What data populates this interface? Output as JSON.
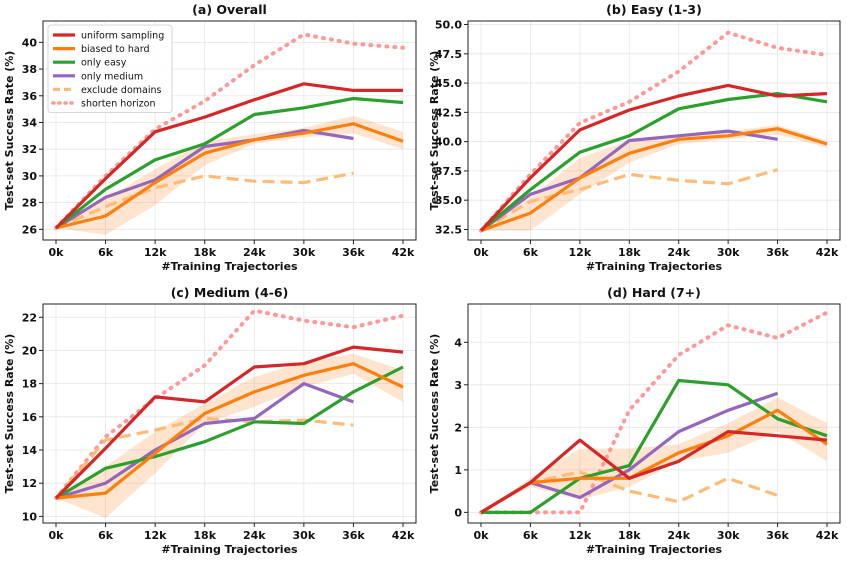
{
  "figure": {
    "legend_panel": "top-left of panel (a)"
  },
  "series_styles": [
    {
      "name": "uniform sampling",
      "color": "#d62728",
      "dash": "solid",
      "opacity": 1.0
    },
    {
      "name": "biased to hard",
      "color": "#ff7f0e",
      "dash": "solid",
      "opacity": 1.0
    },
    {
      "name": "only easy",
      "color": "#2ca02c",
      "dash": "solid",
      "opacity": 1.0
    },
    {
      "name": "only medium",
      "color": "#9467bd",
      "dash": "solid",
      "opacity": 1.0
    },
    {
      "name": "exclude domains",
      "color": "#ffbb78",
      "dash": "dashed",
      "opacity": 1.0
    },
    {
      "name": "shorten horizon",
      "color": "#ff9896",
      "dash": "dotted",
      "opacity": 1.0
    }
  ],
  "chart_data": [
    {
      "type": "line",
      "title": "(a) Overall",
      "xlabel": "#Training Trajectories",
      "ylabel": "Test-set Success Rate (%)",
      "categories": [
        "0k",
        "6k",
        "12k",
        "18k",
        "24k",
        "30k",
        "36k",
        "42k"
      ],
      "ylim": [
        25.2,
        41.6
      ],
      "yticks": [
        26,
        28,
        30,
        32,
        34,
        36,
        38,
        40
      ],
      "ytick_labels": [
        "26",
        "28",
        "30",
        "32",
        "34",
        "36",
        "38",
        "40"
      ],
      "grid": true,
      "legend": "top-left",
      "band": {
        "series": "biased to hard",
        "lower": [
          26.1,
          25.6,
          27.8,
          30.8,
          32.4,
          32.9,
          33.2,
          32.0
        ],
        "upper": [
          26.1,
          28.3,
          30.5,
          32.6,
          33.1,
          33.6,
          34.5,
          33.3
        ]
      },
      "series": [
        {
          "name": "uniform sampling",
          "values": [
            26.1,
            29.8,
            33.3,
            34.4,
            35.7,
            36.9,
            36.4,
            36.4
          ]
        },
        {
          "name": "biased to hard",
          "values": [
            26.1,
            27.0,
            29.5,
            31.7,
            32.7,
            33.2,
            33.9,
            32.6
          ]
        },
        {
          "name": "only easy",
          "values": [
            26.1,
            29.0,
            31.2,
            32.4,
            34.6,
            35.1,
            35.8,
            35.5
          ]
        },
        {
          "name": "only medium",
          "values": [
            26.1,
            28.4,
            29.7,
            32.2,
            32.7,
            33.4,
            32.8,
            null
          ]
        },
        {
          "name": "exclude domains",
          "values": [
            26.1,
            27.7,
            29.1,
            30.0,
            29.6,
            29.5,
            30.2,
            null
          ]
        },
        {
          "name": "shorten horizon",
          "values": [
            26.1,
            30.0,
            33.5,
            35.6,
            38.3,
            40.6,
            39.9,
            39.6
          ]
        }
      ]
    },
    {
      "type": "line",
      "title": "(b) Easy (1-3)",
      "xlabel": "#Training Trajectories",
      "ylabel": "Test-set Success Rate (%)",
      "categories": [
        "0k",
        "6k",
        "12k",
        "18k",
        "24k",
        "30k",
        "36k",
        "42k"
      ],
      "ylim": [
        31.6,
        50.3
      ],
      "yticks": [
        32.5,
        35.0,
        37.5,
        40.0,
        42.5,
        45.0,
        47.5,
        50.0
      ],
      "ytick_labels": [
        "32.5",
        "35.0",
        "37.5",
        "40.0",
        "42.5",
        "45.0",
        "47.5",
        "50.0"
      ],
      "grid": true,
      "band": {
        "series": "biased to hard",
        "lower": [
          32.4,
          32.4,
          35.5,
          38.2,
          39.8,
          40.2,
          40.6,
          39.5
        ],
        "upper": [
          32.4,
          35.2,
          38.6,
          40.1,
          40.6,
          40.9,
          41.4,
          40.1
        ]
      },
      "series": [
        {
          "name": "uniform sampling",
          "values": [
            32.4,
            36.9,
            41.0,
            42.7,
            43.9,
            44.8,
            43.9,
            44.1
          ]
        },
        {
          "name": "biased to hard",
          "values": [
            32.4,
            33.9,
            36.9,
            39.0,
            40.2,
            40.5,
            41.1,
            39.8
          ]
        },
        {
          "name": "only easy",
          "values": [
            32.4,
            35.9,
            39.1,
            40.5,
            42.8,
            43.6,
            44.1,
            43.4
          ]
        },
        {
          "name": "only medium",
          "values": [
            32.4,
            35.5,
            36.9,
            40.1,
            40.5,
            40.9,
            40.2,
            null
          ]
        },
        {
          "name": "exclude domains",
          "values": [
            32.4,
            34.9,
            35.9,
            37.2,
            36.7,
            36.4,
            37.6,
            null
          ]
        },
        {
          "name": "shorten horizon",
          "values": [
            32.4,
            37.2,
            41.6,
            43.4,
            46.0,
            49.3,
            48.0,
            47.4
          ]
        }
      ]
    },
    {
      "type": "line",
      "title": "(c) Medium (4-6)",
      "xlabel": "#Training Trajectories",
      "ylabel": "Test-set Success Rate (%)",
      "categories": [
        "0k",
        "6k",
        "12k",
        "18k",
        "24k",
        "30k",
        "36k",
        "42k"
      ],
      "ylim": [
        9.6,
        22.8
      ],
      "yticks": [
        10,
        12,
        14,
        16,
        18,
        20,
        22
      ],
      "ytick_labels": [
        "10",
        "12",
        "14",
        "16",
        "18",
        "20",
        "22"
      ],
      "grid": true,
      "band": {
        "series": "biased to hard",
        "lower": [
          11.1,
          9.9,
          12.6,
          15.6,
          16.6,
          17.8,
          18.6,
          16.9
        ],
        "upper": [
          11.1,
          13.0,
          15.1,
          16.8,
          18.4,
          19.3,
          19.8,
          18.8
        ]
      },
      "series": [
        {
          "name": "uniform sampling",
          "values": [
            11.1,
            14.1,
            17.2,
            16.9,
            19.0,
            19.2,
            20.2,
            19.9
          ]
        },
        {
          "name": "biased to hard",
          "values": [
            11.1,
            11.4,
            13.8,
            16.2,
            17.5,
            18.5,
            19.2,
            17.8
          ]
        },
        {
          "name": "only easy",
          "values": [
            11.1,
            12.9,
            13.6,
            14.5,
            15.7,
            15.6,
            17.5,
            19.0
          ]
        },
        {
          "name": "only medium",
          "values": [
            11.1,
            12.0,
            14.0,
            15.6,
            15.9,
            18.0,
            16.9,
            null
          ]
        },
        {
          "name": "exclude domains",
          "values": [
            11.1,
            14.6,
            15.2,
            15.9,
            15.7,
            15.8,
            15.5,
            null
          ]
        },
        {
          "name": "shorten horizon",
          "values": [
            11.1,
            14.8,
            17.1,
            19.1,
            22.4,
            21.8,
            21.4,
            22.1
          ]
        }
      ]
    },
    {
      "type": "line",
      "title": "(d) Hard (7+)",
      "xlabel": "#Training Trajectories",
      "ylabel": "Test-set Success Rate (%)",
      "categories": [
        "0k",
        "6k",
        "12k",
        "18k",
        "24k",
        "30k",
        "36k",
        "42k"
      ],
      "ylim": [
        -0.25,
        4.9
      ],
      "yticks": [
        0,
        1,
        2,
        3,
        4
      ],
      "ytick_labels": [
        "0",
        "1",
        "2",
        "3",
        "4"
      ],
      "grid": true,
      "band": {
        "series": "biased to hard",
        "lower": [
          0.0,
          0.6,
          0.3,
          0.6,
          1.2,
          1.4,
          1.9,
          1.2
        ],
        "upper": [
          0.0,
          0.8,
          1.5,
          1.5,
          1.6,
          2.1,
          2.7,
          2.1
        ]
      },
      "series": [
        {
          "name": "uniform sampling",
          "values": [
            0.0,
            0.7,
            1.7,
            0.8,
            1.2,
            1.9,
            1.8,
            1.7
          ]
        },
        {
          "name": "biased to hard",
          "values": [
            0.0,
            0.7,
            0.8,
            0.8,
            1.4,
            1.8,
            2.4,
            1.6
          ]
        },
        {
          "name": "only easy",
          "values": [
            0.0,
            0.0,
            0.8,
            1.1,
            3.1,
            3.0,
            2.2,
            1.8
          ]
        },
        {
          "name": "only medium",
          "values": [
            0.0,
            0.7,
            0.35,
            1.0,
            1.9,
            2.4,
            2.8,
            null
          ]
        },
        {
          "name": "exclude domains",
          "values": [
            0.0,
            0.7,
            0.95,
            0.5,
            0.25,
            0.8,
            0.4,
            null
          ]
        },
        {
          "name": "shorten horizon",
          "values": [
            0.0,
            0.0,
            0.0,
            2.4,
            3.7,
            4.4,
            4.1,
            4.7
          ]
        }
      ]
    }
  ]
}
